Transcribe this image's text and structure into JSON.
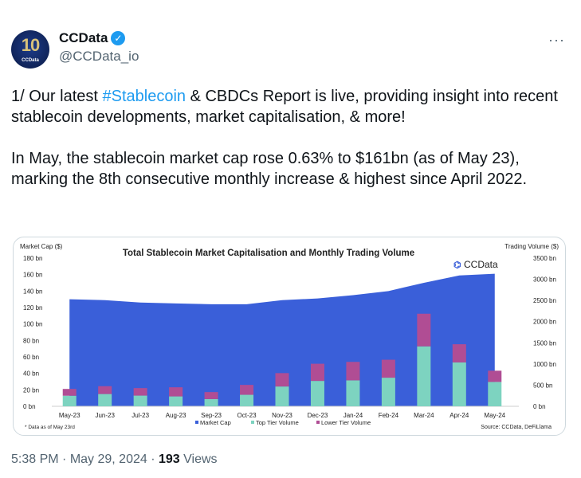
{
  "author": {
    "name": "CCData",
    "handle": "@CCData_io",
    "avatar_text": "10",
    "avatar_brand": "CCData",
    "verified": true
  },
  "more_icon": "more-horizontal-icon",
  "tweet": {
    "prefix": "1/ Our latest ",
    "hashtag": "#Stablecoin",
    "suffix": " & CBDCs Report is live, providing insight into recent stablecoin developments, market capitalisation, & more!\n\nIn May, the stablecoin market cap rose 0.63% to $161bn (as of May 23), marking the 8th consecutive monthly increase & highest since April 2022."
  },
  "footer": {
    "time": "5:38 PM",
    "date": "May 29, 2024",
    "views": "193",
    "views_label": "Views"
  },
  "colors": {
    "market_cap": "#3a5fd9",
    "top_tier": "#7dd3c0",
    "lower_tier": "#b04d94",
    "accent": "#1d9bf0"
  },
  "chart_data": {
    "type": "bar",
    "title": "Total Stablecoin Market Capitalisation and Monthly Trading Volume",
    "brand": "CCData",
    "ylabel": "Market Cap ($)",
    "y2label": "Trading Volume ($)",
    "ylim": [
      0,
      180
    ],
    "y2lim": [
      0,
      3500
    ],
    "yticks": [
      "0 bn",
      "20 bn",
      "40 bn",
      "60 bn",
      "80 bn",
      "100 bn",
      "120 bn",
      "140 bn",
      "160 bn",
      "180 bn"
    ],
    "y2ticks": [
      "0 bn",
      "500 bn",
      "1000 bn",
      "1500 bn",
      "2000 bn",
      "2500 bn",
      "3000 bn",
      "3500 bn"
    ],
    "categories": [
      "May-23",
      "Jun-23",
      "Jul-23",
      "Aug-23",
      "Sep-23",
      "Oct-23",
      "Nov-23",
      "Dec-23",
      "Jan-24",
      "Feb-24",
      "Mar-24",
      "Apr-24",
      "May-24"
    ],
    "series": [
      {
        "name": "Market Cap",
        "type": "area",
        "axis": "left",
        "values": [
          130,
          129,
          126,
          125,
          124,
          124,
          129,
          131,
          135,
          140,
          150,
          159,
          161
        ]
      },
      {
        "name": "Top Tier Volume",
        "type": "bar",
        "axis": "right",
        "values": [
          250,
          290,
          253,
          234,
          171,
          272,
          468,
          600,
          613,
          676,
          1416,
          1037,
          575
        ]
      },
      {
        "name": "Lower Tier Volume",
        "type": "bar",
        "axis": "right",
        "values": [
          160,
          185,
          177,
          215,
          165,
          234,
          316,
          405,
          436,
          424,
          771,
          429,
          266
        ]
      }
    ],
    "footnote": "* Data as of May 23rd",
    "source": "Source: CCData, DeFiLlama",
    "legend": "bottom"
  }
}
